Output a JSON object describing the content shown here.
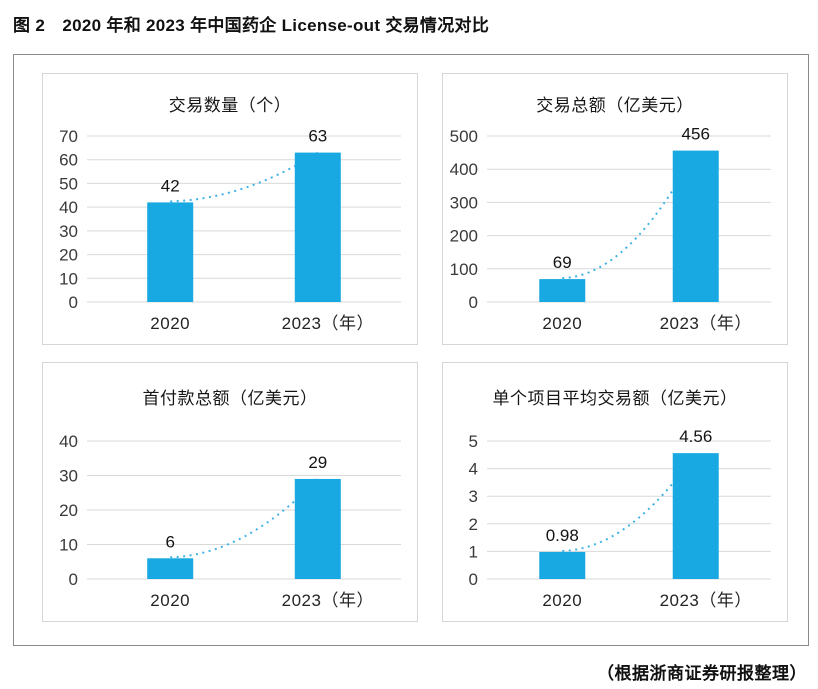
{
  "header": {
    "title": "图 2　2020 年和 2023 年中国药企 License-out 交易情况对比"
  },
  "footer": {
    "source": "（根据浙商证券研报整理）"
  },
  "colors": {
    "bar": "#18a8e2",
    "trend": "#3fb3e6",
    "grid": "#d9d9d9",
    "frame_border": "#8a8a8a",
    "panel_border": "#d6d6d6"
  },
  "chart_data": [
    {
      "type": "bar",
      "title": "交易数量（个）",
      "categories": [
        "2020",
        "2023（年）"
      ],
      "values": [
        42,
        63
      ],
      "labels": [
        "42",
        "63"
      ],
      "yticks": [
        0,
        10,
        20,
        30,
        40,
        50,
        60,
        70
      ],
      "ylim": [
        0,
        70
      ],
      "pad_top": 14,
      "grid": true,
      "legend": "none",
      "trend_line": "dotted"
    },
    {
      "type": "bar",
      "title": "交易总额（亿美元）",
      "categories": [
        "2020",
        "2023（年）"
      ],
      "values": [
        69,
        456
      ],
      "labels": [
        "69",
        "456"
      ],
      "yticks": [
        0,
        100,
        200,
        300,
        400,
        500
      ],
      "ylim": [
        0,
        500
      ],
      "pad_top": 14,
      "grid": true,
      "legend": "none",
      "trend_line": "dotted"
    },
    {
      "type": "bar",
      "title": "首付款总额（亿美元）",
      "categories": [
        "2020",
        "2023（年）"
      ],
      "values": [
        6,
        29
      ],
      "labels": [
        "6",
        "29"
      ],
      "yticks": [
        0,
        10,
        20,
        30,
        40
      ],
      "ylim": [
        0,
        40
      ],
      "pad_top": 30,
      "grid": true,
      "legend": "none",
      "trend_line": "dotted"
    },
    {
      "type": "bar",
      "title": "单个项目平均交易额（亿美元）",
      "categories": [
        "2020",
        "2023（年）"
      ],
      "values": [
        0.98,
        4.56
      ],
      "labels": [
        "0.98",
        "4.56"
      ],
      "yticks": [
        0,
        1,
        2,
        3,
        4,
        5
      ],
      "ylim": [
        0,
        5
      ],
      "pad_top": 30,
      "grid": true,
      "legend": "none",
      "trend_line": "dotted"
    }
  ]
}
